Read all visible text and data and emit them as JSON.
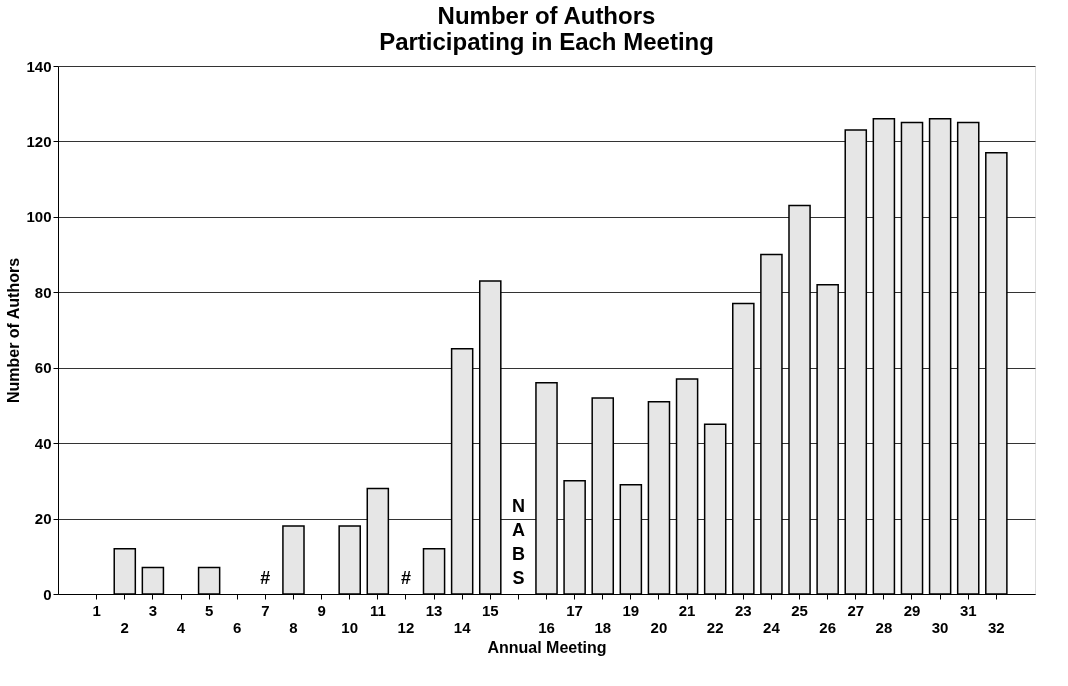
{
  "chart_data": {
    "type": "bar",
    "title": "Number of Authors\nParticipating in Each Meeting",
    "xlabel": "Annual Meeting",
    "ylabel": "Number of Authors",
    "categories": [
      "1",
      "2",
      "3",
      "4",
      "5",
      "6",
      "7",
      "8",
      "9",
      "10",
      "11",
      "12",
      "13",
      "14",
      "15",
      null,
      "16",
      "17",
      "18",
      "19",
      "20",
      "21",
      "22",
      "23",
      "24",
      "25",
      "26",
      "27",
      "28",
      "29",
      "30",
      "31",
      "32"
    ],
    "values": [
      null,
      12,
      7,
      null,
      7,
      null,
      null,
      18,
      null,
      18,
      28,
      null,
      12,
      65,
      83,
      null,
      56,
      30,
      52,
      29,
      51,
      57,
      45,
      77,
      90,
      103,
      82,
      123,
      126,
      125,
      126,
      125,
      117
    ],
    "value_labels": [
      null,
      null,
      null,
      null,
      null,
      null,
      "#",
      null,
      null,
      null,
      null,
      "#",
      null,
      null,
      null,
      "NABS",
      null,
      null,
      null,
      null,
      null,
      null,
      null,
      null,
      null,
      null,
      null,
      null,
      null,
      null,
      null,
      null,
      null
    ],
    "color": "#e6e6e6",
    "ylim": [
      0,
      140
    ],
    "yticks": [
      0,
      20,
      40,
      60,
      80,
      100,
      120,
      140
    ],
    "grid": "y"
  }
}
